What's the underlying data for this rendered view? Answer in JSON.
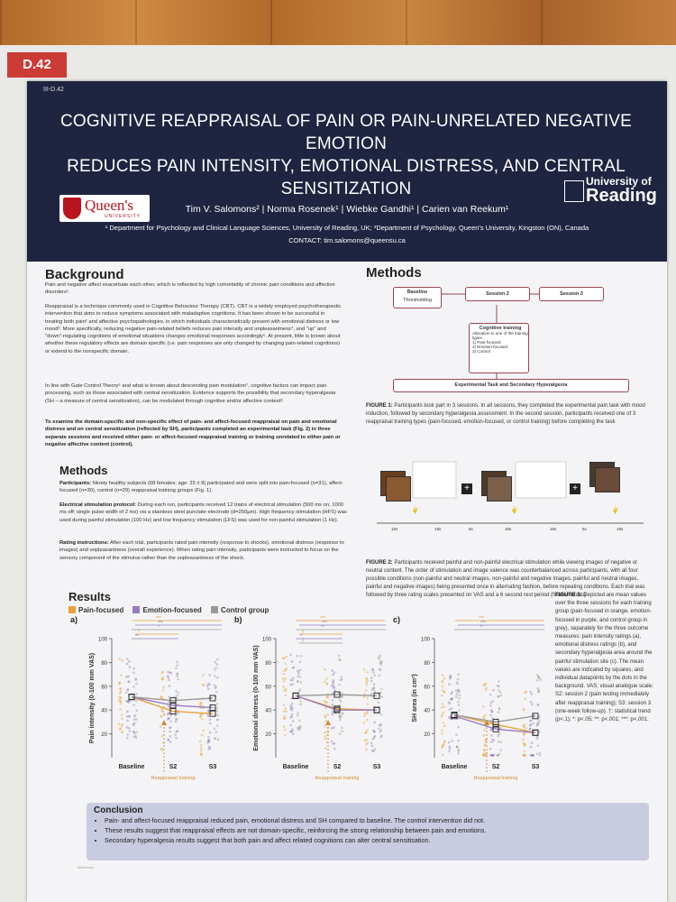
{
  "board_tag": "D.42",
  "poster": {
    "code": "III-D.42",
    "title_lines": [
      "COGNITIVE REAPPRAISAL OF PAIN OR PAIN-UNRELATED NEGATIVE EMOTION",
      "REDUCES PAIN INTENSITY, EMOTIONAL DISTRESS, AND CENTRAL",
      "SENSITIZATION"
    ],
    "authors": "Tim V. Salomons² | Norma Rosenek¹ | Wiebke Gandhi¹ | Carien van Reekum¹",
    "affiliations": "¹ Department for Psychology and Clinical Language Sciences, University of Reading, UK; ²Department of Psychology, Queen's University, Kingston (ON), Canada",
    "contact": "CONTACT: tim.salomons@queensu.ca",
    "logo_left": "Queen's",
    "logo_left_sub": "UNIVERSITY",
    "logo_right_top": "University of",
    "logo_right_name": "Reading"
  },
  "background": {
    "heading": "Background",
    "p1": "Pain and negative affect exacerbate each other, which is reflected by high comorbidity of chronic pain conditions and affective disorders¹.",
    "p2": "Reappraisal is a technique commonly used in Cognitive Behaviour Therapy (CBT). CBT is a widely employed psychotherapeutic intervention that aims to reduce symptoms associated with maladaptive cognitions. It has been shown to be successful in treating both pain² and affective psychopathologies, in which individuals characteristically present with emotional distress or low mood³. More specifically, reducing negative pain-related beliefs reduces pain intensity and unpleasantness⁴, and \"up\" and \"down\"-regulating cognitions of emotional situations changes emotional responses accordingly⁵. At present, little is known about whether these regulatory effects are domain specific (i.e. pain responses are only changed by changing pain-related cognitions) or extend to the nonspecific domain.",
    "p3": "In line with Gate Control Theory⁶ and what is known about descending pain modulation⁷, cognitive factors can impact pain processing, such as those associated with central sensitization. Evidence supports the possibility that secondary hyperalgesia (SH – a measure of central sensitization), can be modulated through cognitive and/or affective context⁸.",
    "p4": "To examine the domain-specific and non-specific effect of pain- and affect-focused reappraisal on pain and emotional distress and on central sensitization (reflected by SH), participants completed an experimental task (Fig. 2) in three separate sessions and received either pain- or affect-focused reappraisal training or training unrelated to either pain or negative affective content (control)."
  },
  "methods_left": {
    "heading": "Methods",
    "participants_label": "Participants:",
    "participants": "Ninety healthy subjects (68 females; age: 25 ± 8) participated and were split into pain-focused (n=31), affect-focused (n=30), control (n=29) reappraisal training groups (Fig. 1).",
    "stim_label": "Electrical stimulation protocol:",
    "stim": "During each run, participants received 12 trains of electrical stimulation (500 ms on; 1000 ms off; single pulse width of 2 ms) via a stainless steel punctate electrode (d=250µm). High frequency stimulation (HFS) was used during painful stimulation (100 Hz) and low frequency stimulation (LFS) was used for non-painful stimulation (1 Hz).",
    "rating_label": "Rating instructions:",
    "rating": "After each trial, participants rated pain intensity (response to shocks), emotional distress (response to images) and unpleasantness (overall experience). When rating pain intensity, participants were instructed to focus on the sensory component of the stimulus rather than the unpleasantness of the shock."
  },
  "methods_right": {
    "heading": "Methods",
    "diagram": {
      "baseline": "Baseline",
      "thresholding": "Thresholding",
      "session2": "Session 2",
      "session3": "Session 3",
      "training_title": "Cognitive training",
      "training_sub": "Allocation to one of the training types",
      "training_items": [
        "1)   Pain-focused",
        "2)   Emotion-focused",
        "3)   Control"
      ],
      "task": "Experimental Task and Secondary Hyperalgesia"
    },
    "fig1_label": "FIGURE 1:",
    "fig1": "Participants took part in 3 sessions. In all sessions, they completed the experimental pain task with mood induction, followed by secondary hyperalgesia assessment. In the second session, participants received one of 3 reappraisal training types (pain-focused, emotion-focused, or control training) before completing the task",
    "fig2_label": "FIGURE 2:",
    "fig2": "Participants received painful and non-painful electrical stimulation while viewing images of negative or neutral content. The order of stimulation and image valence was counterbalanced across participants, with all four possible conditions (non-painful and neutral images, non-painful and negative images, painful and neutral images, painful and negative images) being presented once in alternating fashion, before repeating conditions. Each trial was followed by three rating scales presented on VAS and a 6 second rest period (fixation cross)",
    "timeline": [
      "18s",
      "18s",
      "6s",
      "18s",
      "18s",
      "6s",
      "18s"
    ]
  },
  "results": {
    "heading": "Results",
    "legend": [
      "Pain-focused",
      "Emotion-focused",
      "Control group"
    ],
    "fig3_label": "FIGURE 3:",
    "fig3": "Depicted are mean values over the three sessions for each training group (pain-focused in orange, emotion-focused in purple, and control group in grey), separately for the three outcome measures: pain intensity ratings (a), emotional distress ratings (b), and secondary hyperalgesia area around the painful stimulation site (c). The mean values are indicated by squares, and individual datapoints by the dots in the background. VAS: visual analogue scale; S2: session 2 (pain testing immediately after reappraisal training); S3: session 3 (one-week follow-up). †: statistical trend (p<.1); *: p<.05; **: p<.001; ***: p<.001.",
    "reappraisal_label": "Reappraisal training"
  },
  "chart_data": [
    {
      "type": "line",
      "panel": "a)",
      "categories": [
        "Baseline",
        "S2",
        "S3"
      ],
      "ylabel": "Pain intensity (0-100 mm VAS)",
      "ylim": [
        0,
        100
      ],
      "yticks": [
        20,
        40,
        60,
        80,
        100
      ],
      "series": [
        {
          "name": "Pain-focused",
          "values": [
            51,
            39,
            37
          ]
        },
        {
          "name": "Emotion-focused",
          "values": [
            51,
            44,
            42
          ]
        },
        {
          "name": "Control group",
          "values": [
            51,
            48,
            50
          ]
        }
      ],
      "significance": [
        "***",
        "***",
        "*",
        "*",
        "**"
      ]
    },
    {
      "type": "line",
      "panel": "b)",
      "categories": [
        "Baseline",
        "S2",
        "S3"
      ],
      "ylabel": "Emotional distress (0-100 mm VAS)",
      "ylim": [
        0,
        100
      ],
      "yticks": [
        20,
        40,
        60,
        80,
        100
      ],
      "series": [
        {
          "name": "Pain-focused",
          "values": [
            52,
            41,
            40
          ]
        },
        {
          "name": "Emotion-focused",
          "values": [
            52,
            40,
            40
          ]
        },
        {
          "name": "Control group",
          "values": [
            52,
            53,
            52
          ]
        }
      ],
      "significance": [
        "***",
        "***",
        "**",
        "†",
        "*",
        "†"
      ]
    },
    {
      "type": "line",
      "panel": "c)",
      "categories": [
        "Baseline",
        "S2",
        "S3"
      ],
      "ylabel": "SH area (in cm²)",
      "ylim": [
        0,
        100
      ],
      "yticks": [
        20,
        40,
        60,
        80,
        100
      ],
      "series": [
        {
          "name": "Pain-focused",
          "values": [
            36,
            28,
            21
          ]
        },
        {
          "name": "Emotion-focused",
          "values": [
            35,
            24,
            21
          ]
        },
        {
          "name": "Control group",
          "values": [
            36,
            30,
            35
          ]
        }
      ],
      "significance": [
        "***",
        "***",
        "**"
      ]
    }
  ],
  "conclusion": {
    "heading": "Conclusion",
    "bullets": [
      "Pain- and affect-focused reappraisal reduced pain, emotional distress and SH compared to baseline. The control intervention did not.",
      "These results suggest that reappraisal effects are not domain-specific, reinforcing the strong relationship between pain and emotions.",
      "Secondary hyperalgesia results suggest that both pain and affect related cognitions can alter central sensitisation."
    ]
  },
  "references_label": "References",
  "colors": {
    "pain": "#e8a33a",
    "emotion": "#9a7cc0",
    "control": "#9a9a9a",
    "header": "#1f2440",
    "accent": "#9a4550"
  }
}
